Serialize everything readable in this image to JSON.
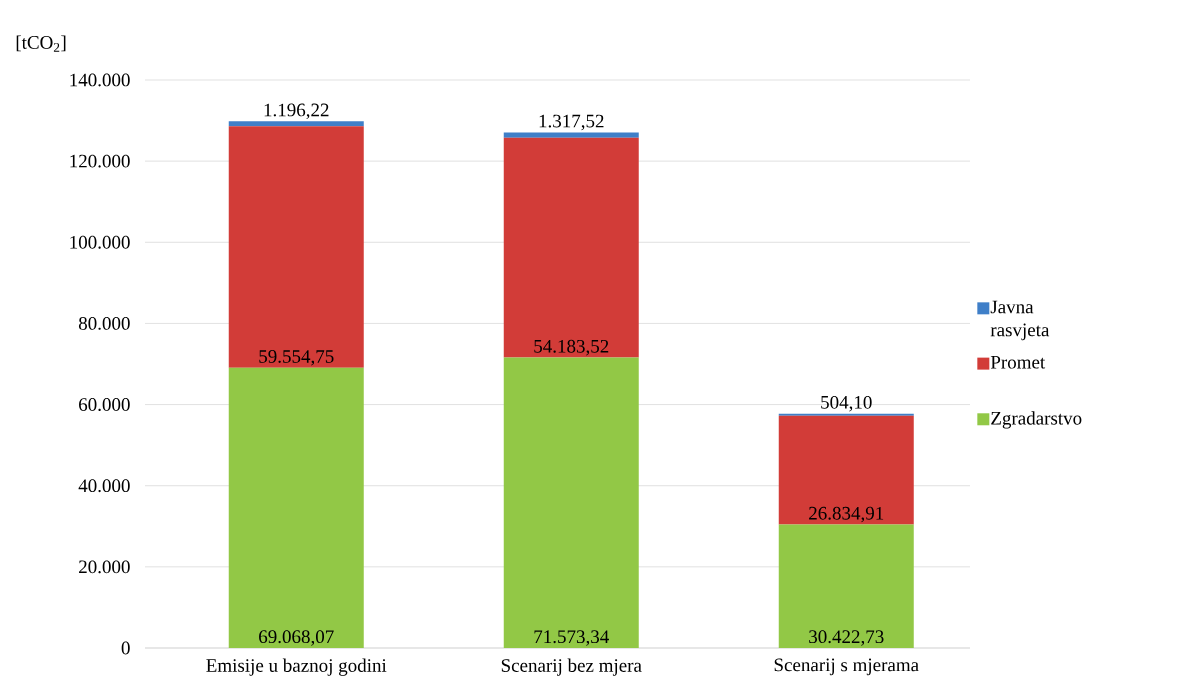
{
  "chart_data": {
    "type": "bar",
    "stacked": true,
    "ylabel": "[tCO$_{2}$]",
    "categories": [
      "Emisije u baznoj godini",
      "Scenarij bez mjera",
      "Scenarij s mjerama"
    ],
    "series": [
      {
        "name": "Zgradarstvo",
        "color": "#92c846",
        "values": [
          69068.07,
          71573.34,
          30422.73
        ],
        "value_labels": [
          "69.068,07",
          "71.573,34",
          "30.422,73"
        ]
      },
      {
        "name": "Promet",
        "color": "#d23c38",
        "values": [
          59554.75,
          54183.52,
          26834.91
        ],
        "value_labels": [
          "59.554,75",
          "54.183,52",
          "26.834,91"
        ]
      },
      {
        "name": "Javna rasvjeta",
        "color": "#3f7fc8",
        "values": [
          1196.22,
          1317.52,
          504.1
        ],
        "value_labels": [
          "1.196,22",
          "1.317,52",
          "504,10"
        ]
      }
    ],
    "ylim": [
      0,
      140000
    ],
    "yticks": [
      {
        "value": 0,
        "label": "0"
      },
      {
        "value": 20000,
        "label": "20.000"
      },
      {
        "value": 40000,
        "label": "40.000"
      },
      {
        "value": 60000,
        "label": "60.000"
      },
      {
        "value": 80000,
        "label": "80.000"
      },
      {
        "value": 100000,
        "label": "100.000"
      },
      {
        "value": 120000,
        "label": "120.000"
      },
      {
        "value": 140000,
        "label": "140.000"
      }
    ],
    "grid": "y",
    "legend": "right"
  }
}
